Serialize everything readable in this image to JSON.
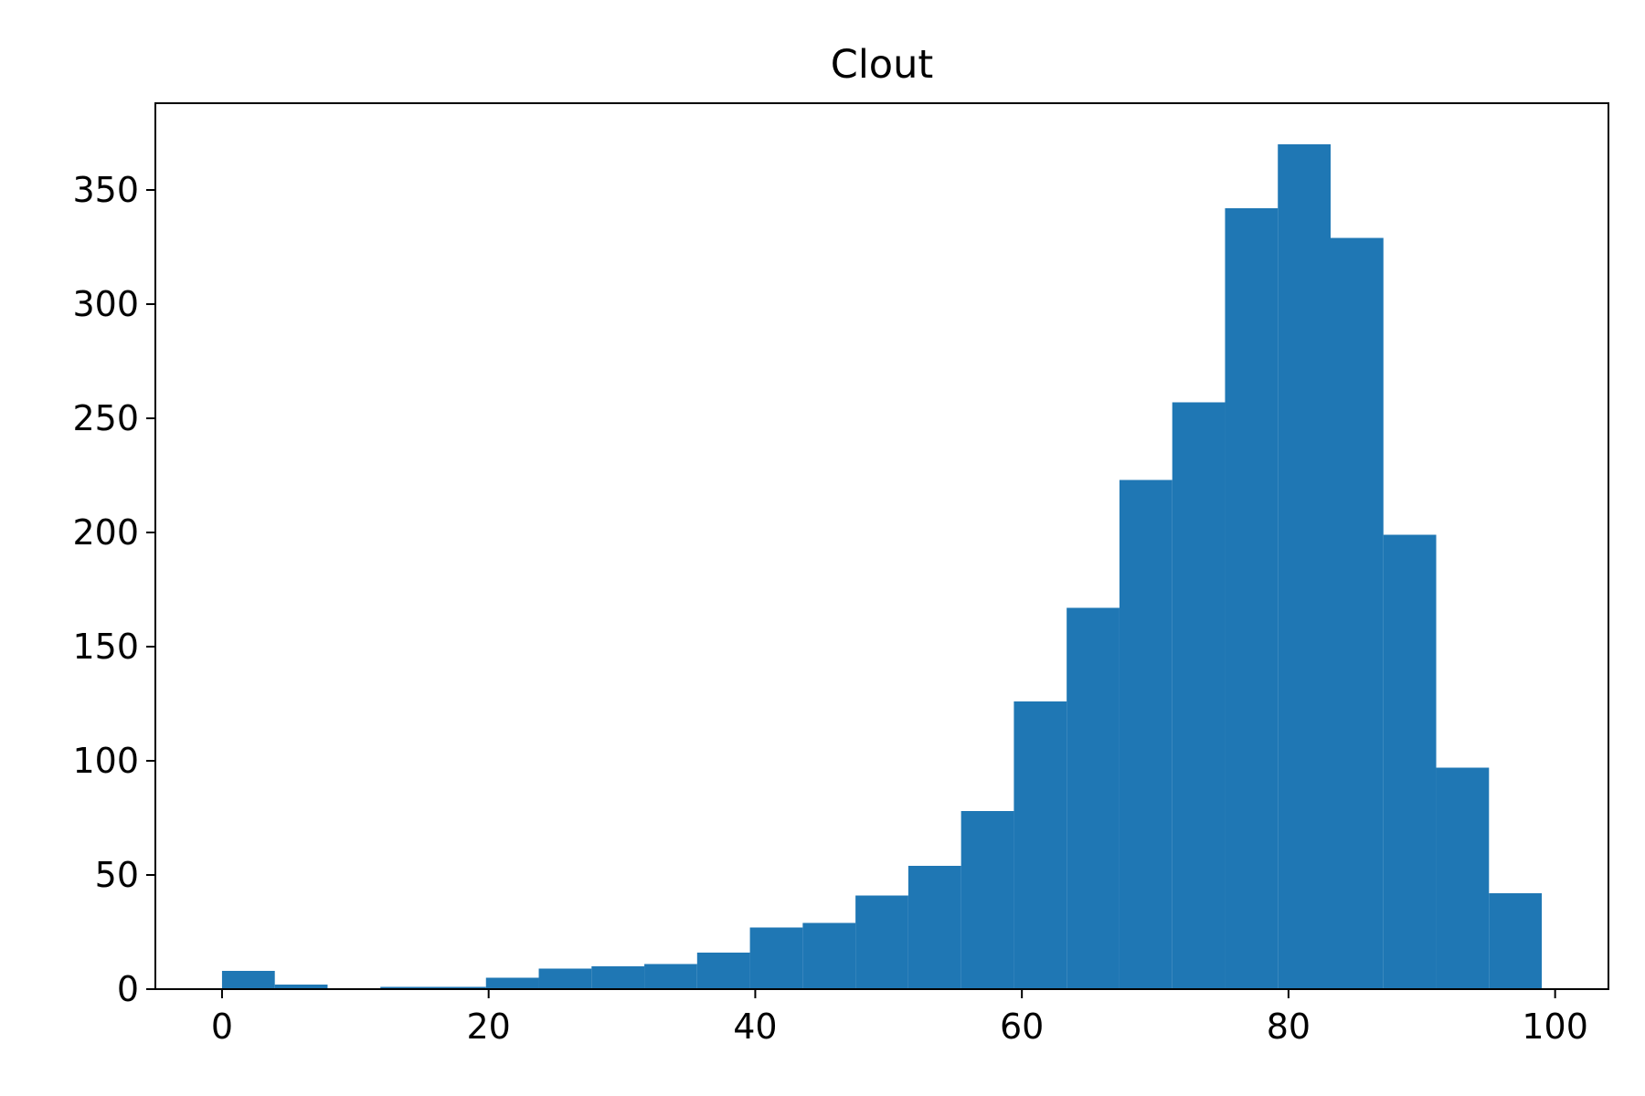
{
  "chart_data": {
    "type": "bar",
    "title": "Clout",
    "xlabel": "",
    "ylabel": "",
    "xlim": [
      -5,
      104
    ],
    "ylim": [
      0,
      388
    ],
    "xticks": [
      0,
      20,
      40,
      60,
      80,
      100
    ],
    "yticks": [
      0,
      50,
      100,
      150,
      200,
      250,
      300,
      350
    ],
    "bar_color": "#1f77b4",
    "grid": false,
    "legend": "none",
    "bins": [
      {
        "x0": 0.0,
        "x1": 3.96,
        "count": 8
      },
      {
        "x0": 3.96,
        "x1": 7.92,
        "count": 2
      },
      {
        "x0": 7.92,
        "x1": 11.88,
        "count": 0
      },
      {
        "x0": 11.88,
        "x1": 15.84,
        "count": 1
      },
      {
        "x0": 15.84,
        "x1": 19.8,
        "count": 1
      },
      {
        "x0": 19.8,
        "x1": 23.76,
        "count": 5
      },
      {
        "x0": 23.76,
        "x1": 27.72,
        "count": 9
      },
      {
        "x0": 27.72,
        "x1": 31.68,
        "count": 10
      },
      {
        "x0": 31.68,
        "x1": 35.64,
        "count": 11
      },
      {
        "x0": 35.64,
        "x1": 39.6,
        "count": 16
      },
      {
        "x0": 39.6,
        "x1": 43.56,
        "count": 27
      },
      {
        "x0": 43.56,
        "x1": 47.52,
        "count": 29
      },
      {
        "x0": 47.52,
        "x1": 51.48,
        "count": 41
      },
      {
        "x0": 51.48,
        "x1": 55.44,
        "count": 54
      },
      {
        "x0": 55.44,
        "x1": 59.4,
        "count": 78
      },
      {
        "x0": 59.4,
        "x1": 63.36,
        "count": 126
      },
      {
        "x0": 63.36,
        "x1": 67.32,
        "count": 167
      },
      {
        "x0": 67.32,
        "x1": 71.28,
        "count": 223
      },
      {
        "x0": 71.28,
        "x1": 75.24,
        "count": 257
      },
      {
        "x0": 75.24,
        "x1": 79.2,
        "count": 342
      },
      {
        "x0": 79.2,
        "x1": 83.16,
        "count": 370
      },
      {
        "x0": 83.16,
        "x1": 87.12,
        "count": 329
      },
      {
        "x0": 87.12,
        "x1": 91.08,
        "count": 199
      },
      {
        "x0": 91.08,
        "x1": 95.04,
        "count": 97
      },
      {
        "x0": 95.04,
        "x1": 99.0,
        "count": 42
      }
    ]
  }
}
